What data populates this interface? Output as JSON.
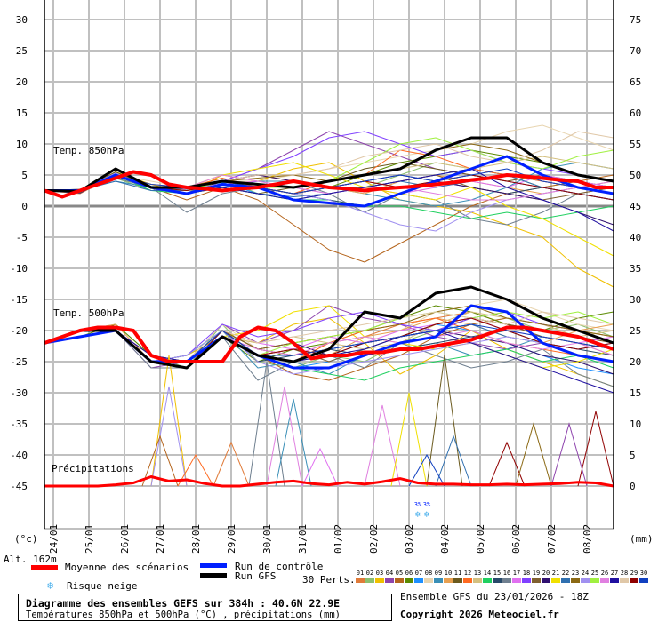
{
  "chart_data": {
    "type": "line",
    "title": "Diagramme des ensembles GEFS sur 384h : 40.6N 22.9E",
    "subtitle": "Températures 850hPa et 500hPa (°C) , précipitations (mm)",
    "run_info": "Ensemble GFS du 23/01/2026 - 18Z",
    "copyright": "Copyright 2026 Meteociel.fr",
    "left_axis_unit": "(°c)",
    "right_axis_unit": "(mm)",
    "altitude": "Alt. 162m",
    "left_ticks": [
      "30",
      "25",
      "20",
      "15",
      "10",
      "5",
      "0",
      "-5",
      "-10",
      "-15",
      "-20",
      "-25",
      "-30",
      "-35",
      "-40",
      "-45"
    ],
    "right_ticks": [
      "75",
      "70",
      "65",
      "60",
      "55",
      "50",
      "45",
      "40",
      "35",
      "30",
      "25",
      "20",
      "15",
      "10",
      "5",
      "0"
    ],
    "left_range": [
      -45,
      30
    ],
    "hours_range": [
      0,
      384
    ],
    "dates": [
      "24/01",
      "25/01",
      "26/01",
      "27/01",
      "28/01",
      "29/01",
      "30/01",
      "31/01",
      "01/02",
      "02/02",
      "03/02",
      "04/02",
      "05/02",
      "06/02",
      "07/02",
      "08/02"
    ],
    "section_labels": {
      "t850": "Temp. 850hPa",
      "t500": "Temp. 500hPa",
      "precip": "Précipitations"
    },
    "snow_risk_marks": [
      {
        "hours": 252,
        "percent": "3%"
      },
      {
        "hours": 258,
        "percent": "3%"
      }
    ],
    "legend": {
      "mean": "Moyenne des scénarios",
      "control": "Run de contrôle",
      "gfs": "Run GFS",
      "snow": "Risque neige",
      "perts": "30 Perts."
    },
    "colors": {
      "mean": "#ff0000",
      "control": "#0020ff",
      "gfs": "#000000",
      "members": [
        "#e07b39",
        "#8cc070",
        "#f0c000",
        "#8e44ad",
        "#b5651d",
        "#5a8a00",
        "#1e90ff",
        "#e8d5b0",
        "#3a8fb7",
        "#e8a050",
        "#6b5a1e",
        "#ff6a20",
        "#d4c080",
        "#20d060",
        "#284a6a",
        "#708090",
        "#e070f0",
        "#8040ff",
        "#806030",
        "#301070",
        "#f0e000",
        "#3070b0",
        "#8b6914",
        "#a090f0",
        "#a0f040",
        "#e080e0",
        "#2010a0",
        "#e0c8a8",
        "#900000",
        "#1040c0"
      ]
    },
    "member_ids": [
      "01",
      "02",
      "03",
      "04",
      "05",
      "06",
      "07",
      "08",
      "09",
      "10",
      "11",
      "12",
      "13",
      "14",
      "15",
      "16",
      "17",
      "18",
      "19",
      "20",
      "21",
      "22",
      "23",
      "24",
      "25",
      "26",
      "27",
      "28",
      "29",
      "30"
    ],
    "mean_step_hours": 12,
    "mean_t850": [
      2.5,
      1.5,
      2.5,
      3.5,
      4.5,
      5.5,
      5,
      3.5,
      3,
      2.8,
      2.5,
      2.8,
      3,
      3.5,
      4,
      3.5,
      3,
      2.8,
      2.5,
      2.8,
      3,
      3.2,
      3.5,
      3.8,
      4.2,
      4.5,
      5,
      4.8,
      4.5,
      4.2,
      4,
      3,
      3
    ],
    "mean_t500": [
      -22,
      -21,
      -20,
      -19.5,
      -19.5,
      -20,
      -24,
      -25,
      -25,
      -25,
      -25,
      -21,
      -19.5,
      -20,
      -22,
      -24.5,
      -24,
      -24,
      -23.5,
      -23.5,
      -23,
      -23,
      -22.5,
      -22,
      -21.5,
      -20.5,
      -19.5,
      -19.5,
      -20,
      -20.5,
      -21,
      -22,
      -23
    ],
    "mean_precip": [
      0,
      0,
      0,
      0,
      0.2,
      0.5,
      1.5,
      0.8,
      1,
      0.4,
      0,
      0,
      0.3,
      0.6,
      0.8,
      0.4,
      0.2,
      0.6,
      0.3,
      0.7,
      1.2,
      0.5,
      0.3,
      0.3,
      0.2,
      0.2,
      0.3,
      0.2,
      0.3,
      0.4,
      0.6,
      0.5,
      0
    ],
    "run_step_hours": 24,
    "control_t850": [
      2.5,
      2.5,
      5,
      3,
      2,
      3.5,
      3,
      1,
      0.5,
      0,
      2,
      4,
      6,
      8,
      5,
      3,
      2
    ],
    "gfs_t850": [
      2.5,
      2.4,
      6,
      3,
      3,
      4,
      3.5,
      3,
      4,
      5,
      6,
      9,
      11,
      11,
      7,
      5,
      4
    ],
    "control_t500": [
      -22,
      -21,
      -20,
      -25,
      -25,
      -21,
      -24,
      -26,
      -26,
      -24,
      -22,
      -21,
      -16,
      -17,
      -22,
      -24,
      -25
    ],
    "gfs_t500": [
      -22,
      -20,
      -20,
      -25,
      -26,
      -21,
      -24,
      -25,
      -23,
      -17,
      -18,
      -14,
      -13,
      -15,
      -18,
      -20,
      -22
    ],
    "members_t850": [
      [
        2.5,
        2,
        5,
        3,
        2,
        4,
        3,
        2,
        3,
        4,
        3,
        4,
        6,
        5,
        4,
        3,
        2
      ],
      [
        2.4,
        2.2,
        4.5,
        2.5,
        3,
        4.5,
        2,
        1,
        2,
        3,
        5,
        7,
        6,
        5,
        3,
        4,
        3
      ],
      [
        2.6,
        2.5,
        5.5,
        3.5,
        2,
        5,
        4,
        6,
        7,
        4,
        1,
        0,
        -1,
        -3,
        -5,
        -10,
        -13
      ],
      [
        2.5,
        2.3,
        5,
        3,
        2,
        4,
        6,
        9,
        12,
        10,
        8,
        6,
        5,
        4,
        3,
        2,
        1
      ],
      [
        2.5,
        2.4,
        6,
        3,
        1,
        3,
        1,
        -3,
        -7,
        -9,
        -6,
        -3,
        0,
        2,
        3,
        4,
        5
      ],
      [
        2.5,
        2.6,
        4.8,
        3,
        2.5,
        3.5,
        3,
        2,
        3,
        5,
        7,
        8,
        9,
        8,
        7,
        5,
        4
      ],
      [
        2.5,
        2.1,
        5.2,
        3.2,
        2.8,
        3.8,
        2,
        1,
        2,
        3,
        4,
        5,
        6,
        5,
        4,
        3,
        2
      ],
      [
        2.5,
        2.5,
        5,
        4,
        3,
        4,
        4,
        5,
        6,
        7,
        8,
        9,
        10,
        12,
        13,
        11,
        9
      ],
      [
        2.5,
        2.7,
        4,
        3,
        2,
        3,
        4,
        4,
        3,
        2,
        1,
        0,
        1,
        3,
        6,
        7,
        6
      ],
      [
        2.5,
        2.2,
        5,
        3,
        3,
        4,
        5,
        4,
        3,
        2,
        4,
        5,
        4,
        3,
        2,
        3,
        4
      ],
      [
        2.5,
        2.4,
        5.5,
        3,
        2,
        3,
        2,
        3,
        4,
        6,
        7,
        6,
        5,
        4,
        5,
        4,
        3
      ],
      [
        2.5,
        2.3,
        5,
        3.5,
        3,
        4.5,
        3,
        2,
        4,
        5,
        9,
        8,
        6,
        5,
        4,
        3,
        2
      ],
      [
        2.5,
        2.5,
        4.5,
        3,
        3,
        4,
        3,
        3,
        4,
        5,
        6,
        7,
        6,
        7,
        8,
        7,
        6
      ],
      [
        2.5,
        2.6,
        5,
        2.5,
        2,
        3,
        2,
        1,
        1,
        0,
        0,
        -1,
        -2,
        -1,
        -2,
        -1,
        0
      ],
      [
        2.5,
        2.2,
        5,
        3,
        2.5,
        4,
        3,
        2,
        1,
        0,
        2,
        4,
        3,
        2,
        3,
        2,
        1
      ],
      [
        2.5,
        2.4,
        4.5,
        3,
        -1,
        2,
        3,
        4,
        2,
        -1,
        2,
        1,
        -2,
        -3,
        -1,
        2,
        3
      ],
      [
        2.5,
        2.3,
        5,
        3,
        2.5,
        3.5,
        4,
        3,
        2,
        3,
        2,
        3,
        4,
        3,
        5,
        4,
        3
      ],
      [
        2.5,
        2.5,
        5,
        3,
        2,
        4,
        6,
        8,
        11,
        12,
        10,
        8,
        9,
        7,
        6,
        5,
        4
      ],
      [
        2.5,
        2.7,
        5,
        3,
        2,
        4,
        3,
        4,
        3,
        3,
        4,
        5,
        3,
        2,
        1,
        2,
        3
      ],
      [
        2.5,
        2.1,
        5,
        3,
        2,
        4,
        5,
        4,
        3,
        4,
        5,
        4,
        3,
        2,
        1,
        -1,
        -3
      ],
      [
        2.5,
        2.3,
        6,
        3,
        3,
        5,
        6,
        7,
        5,
        3,
        2,
        1,
        3,
        0,
        -2,
        -5,
        -8
      ],
      [
        2.5,
        2.5,
        4,
        2.5,
        2.5,
        3,
        2,
        1.5,
        2,
        3,
        4,
        3,
        4,
        5,
        3,
        2,
        1
      ],
      [
        2.5,
        2.4,
        5,
        3,
        2.5,
        4,
        4.5,
        5,
        4,
        5,
        6,
        9,
        10,
        9,
        7,
        5,
        4
      ],
      [
        2.5,
        2.6,
        5.3,
        3,
        2.7,
        3.6,
        3,
        2,
        1,
        -1,
        -3,
        -4,
        -1,
        1,
        2,
        3,
        2
      ],
      [
        2.5,
        2.2,
        5,
        3,
        2.5,
        4,
        3,
        3,
        4,
        7,
        10,
        11,
        9,
        7,
        6,
        8,
        9
      ],
      [
        2.5,
        2.4,
        5,
        3,
        3,
        5,
        4,
        3,
        2,
        3,
        3,
        2,
        1,
        1,
        2,
        3,
        4
      ],
      [
        2.5,
        2.5,
        5,
        3,
        2,
        3,
        2,
        1,
        2,
        3,
        4,
        5,
        6,
        3,
        1,
        -1,
        -4
      ],
      [
        2.5,
        2.3,
        5,
        3,
        3,
        4,
        5,
        5,
        6,
        8,
        9,
        10,
        8,
        7,
        9,
        12,
        11
      ],
      [
        2.5,
        2.5,
        5,
        3,
        2.5,
        3.5,
        3,
        2,
        3,
        4,
        3,
        4,
        5,
        4,
        3,
        2,
        1
      ],
      [
        2.5,
        2.4,
        5,
        3.5,
        3,
        4,
        3,
        2,
        3,
        4,
        5,
        4,
        5,
        6,
        4,
        3,
        2
      ]
    ],
    "members_t500": [
      [
        -22,
        -20,
        -20,
        -25,
        -25,
        -20,
        -23,
        -24,
        -22,
        -21,
        -19,
        -18,
        -17,
        -19,
        -21,
        -22,
        -24
      ],
      [
        -22,
        -20,
        -19,
        -24,
        -26,
        -19,
        -25,
        -26,
        -24,
        -25,
        -22,
        -20,
        -19,
        -18,
        -20,
        -19,
        -21
      ],
      [
        -22,
        -20,
        -20,
        -25,
        -24,
        -21,
        -22,
        -19,
        -18,
        -22,
        -27,
        -24,
        -20,
        -23,
        -25,
        -27,
        -29
      ],
      [
        -22,
        -20,
        -20,
        -26,
        -25,
        -19,
        -22,
        -20,
        -16,
        -18,
        -19,
        -21,
        -22,
        -23,
        -22,
        -24,
        -25
      ],
      [
        -22,
        -20,
        -20,
        -25,
        -25,
        -20,
        -24,
        -27,
        -28,
        -26,
        -24,
        -21,
        -19,
        -18,
        -19,
        -20,
        -21
      ],
      [
        -22,
        -21,
        -19,
        -24,
        -25,
        -21,
        -25,
        -23,
        -22,
        -20,
        -18,
        -16,
        -17,
        -19,
        -20,
        -18,
        -17
      ],
      [
        -22,
        -20,
        -20,
        -25,
        -26,
        -20,
        -24,
        -26,
        -25,
        -23,
        -21,
        -19,
        -20,
        -22,
        -24,
        -26,
        -27
      ],
      [
        -22,
        -20,
        -20,
        -24,
        -25,
        -19,
        -23,
        -22,
        -21,
        -22,
        -20,
        -17,
        -16,
        -15,
        -17,
        -19,
        -20
      ],
      [
        -22,
        -21,
        -20,
        -25,
        -24,
        -20,
        -26,
        -25,
        -27,
        -24,
        -23,
        -22,
        -24,
        -23,
        -21,
        -22,
        -23
      ],
      [
        -22,
        -20,
        -19,
        -25,
        -25,
        -21,
        -24,
        -23,
        -24,
        -21,
        -20,
        -18,
        -19,
        -21,
        -22,
        -20,
        -19
      ],
      [
        -22,
        -20,
        -20,
        -25,
        -26,
        -20,
        -23,
        -24,
        -23,
        -22,
        -21,
        -20,
        -18,
        -19,
        -20,
        -21,
        -22
      ],
      [
        -22,
        -20,
        -20,
        -24,
        -25,
        -20,
        -24,
        -25,
        -22,
        -20,
        -19,
        -18,
        -20,
        -22,
        -23,
        -24,
        -25
      ],
      [
        -22,
        -20,
        -20,
        -25,
        -25,
        -21,
        -22,
        -21,
        -22,
        -23,
        -22,
        -19,
        -17,
        -18,
        -19,
        -21,
        -20
      ],
      [
        -22,
        -20,
        -20,
        -25,
        -24,
        -20,
        -24,
        -26,
        -27,
        -28,
        -26,
        -25,
        -24,
        -23,
        -25,
        -24,
        -26
      ],
      [
        -22,
        -21,
        -20,
        -25,
        -25,
        -20,
        -25,
        -24,
        -23,
        -24,
        -23,
        -22,
        -21,
        -20,
        -22,
        -23,
        -24
      ],
      [
        -22,
        -20,
        -20,
        -26,
        -26,
        -21,
        -28,
        -25,
        -24,
        -26,
        -22,
        -24,
        -26,
        -25,
        -23,
        -27,
        -29
      ],
      [
        -22,
        -20,
        -20,
        -25,
        -25,
        -20,
        -22,
        -23,
        -21,
        -22,
        -20,
        -19,
        -18,
        -20,
        -21,
        -22,
        -21
      ],
      [
        -22,
        -20,
        -20,
        -25,
        -24,
        -19,
        -21,
        -20,
        -18,
        -17,
        -19,
        -20,
        -18,
        -17,
        -19,
        -20,
        -22
      ],
      [
        -22,
        -20,
        -20,
        -25,
        -25,
        -20,
        -24,
        -23,
        -25,
        -23,
        -21,
        -19,
        -18,
        -19,
        -21,
        -22,
        -23
      ],
      [
        -22,
        -20,
        -20,
        -24,
        -25,
        -20,
        -23,
        -22,
        -24,
        -22,
        -21,
        -20,
        -21,
        -22,
        -24,
        -25,
        -27
      ],
      [
        -22,
        -20,
        -20,
        -25,
        -25,
        -21,
        -20,
        -17,
        -16,
        -21,
        -22,
        -23,
        -22,
        -24,
        -26,
        -25,
        -23
      ],
      [
        -22,
        -20,
        -20,
        -25,
        -26,
        -20,
        -24,
        -25,
        -23,
        -22,
        -21,
        -20,
        -19,
        -21,
        -22,
        -23,
        -22
      ],
      [
        -22,
        -20,
        -20,
        -25,
        -25,
        -20,
        -23,
        -22,
        -21,
        -20,
        -19,
        -17,
        -16,
        -18,
        -19,
        -20,
        -21
      ],
      [
        -22,
        -20,
        -20,
        -25,
        -24,
        -20,
        -25,
        -27,
        -26,
        -25,
        -24,
        -23,
        -22,
        -21,
        -22,
        -24,
        -25
      ],
      [
        -22,
        -20,
        -20,
        -25,
        -25,
        -20,
        -24,
        -22,
        -21,
        -20,
        -18,
        -17,
        -18,
        -17,
        -18,
        -17,
        -19
      ],
      [
        -22,
        -20,
        -20,
        -25,
        -25,
        -21,
        -23,
        -24,
        -22,
        -21,
        -22,
        -21,
        -20,
        -22,
        -23,
        -22,
        -24
      ],
      [
        -22,
        -20,
        -20,
        -24,
        -25,
        -20,
        -24,
        -25,
        -24,
        -23,
        -21,
        -20,
        -22,
        -24,
        -26,
        -28,
        -30
      ],
      [
        -22,
        -20,
        -20,
        -25,
        -25,
        -20,
        -22,
        -21,
        -20,
        -19,
        -18,
        -17,
        -18,
        -19,
        -17,
        -18,
        -19
      ],
      [
        -22,
        -20,
        -20,
        -25,
        -26,
        -20,
        -24,
        -23,
        -24,
        -22,
        -21,
        -19,
        -18,
        -20,
        -22,
        -23,
        -22
      ],
      [
        -22,
        -20,
        -20,
        -25,
        -25,
        -20,
        -24,
        -24,
        -23,
        -22,
        -21,
        -20,
        -19,
        -20,
        -21,
        -22,
        -23
      ]
    ],
    "precip_spikes": [
      {
        "member": 3,
        "hours": 84,
        "mm": 21
      },
      {
        "member": 24,
        "hours": 84,
        "mm": 16
      },
      {
        "member": 5,
        "hours": 78,
        "mm": 8
      },
      {
        "member": 16,
        "hours": 150,
        "mm": 20
      },
      {
        "member": 9,
        "hours": 168,
        "mm": 14
      },
      {
        "member": 26,
        "hours": 162,
        "mm": 16
      },
      {
        "member": 26,
        "hours": 228,
        "mm": 13
      },
      {
        "member": 17,
        "hours": 186,
        "mm": 6
      },
      {
        "member": 11,
        "hours": 270,
        "mm": 21
      },
      {
        "member": 22,
        "hours": 276,
        "mm": 8
      },
      {
        "member": 29,
        "hours": 312,
        "mm": 7
      },
      {
        "member": 23,
        "hours": 330,
        "mm": 10
      },
      {
        "member": 4,
        "hours": 354,
        "mm": 10
      },
      {
        "member": 29,
        "hours": 372,
        "mm": 12
      },
      {
        "member": 1,
        "hours": 126,
        "mm": 7
      },
      {
        "member": 12,
        "hours": 102,
        "mm": 5
      },
      {
        "member": 21,
        "hours": 246,
        "mm": 15
      },
      {
        "member": 30,
        "hours": 258,
        "mm": 5
      }
    ]
  }
}
